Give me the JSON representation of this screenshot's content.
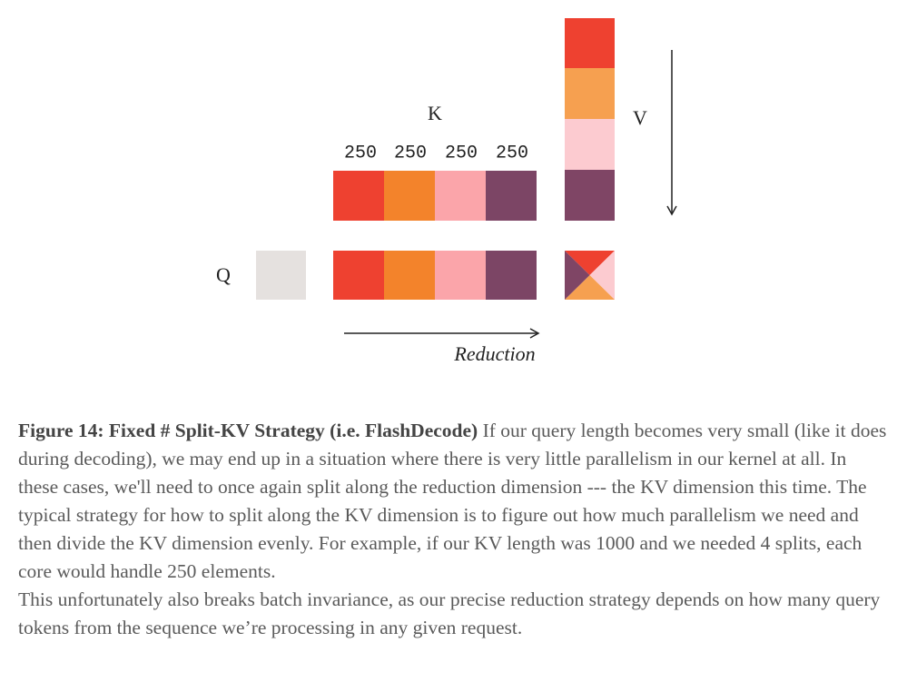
{
  "diagram": {
    "k_label": "K",
    "v_label": "V",
    "q_label": "Q",
    "reduction_label": "Reduction",
    "split_sizes": [
      "250",
      "250",
      "250",
      "250"
    ]
  },
  "caption": {
    "figure_label": "Figure 14: Fixed # Split-KV Strategy (i.e. FlashDecode)",
    "paragraphs": [
      "If our query length becomes very small (like it does during decoding), we may end up in a situation where there is very little parallelism in our kernel at all. In these cases, we'll need to once again split along the reduction dimension --- the KV dimension this time. The typical strategy for how to split along the KV dimension is to figure out how much parallelism we need and then divide the KV dimension evenly. For example, if our KV length was 1000 and we needed 4 splits, each core would handle 250 elements.",
      "This unfortunately also breaks batch invariance, as our precise reduction strategy depends on how many query tokens from the sequence we’re processing in any given request."
    ]
  }
}
